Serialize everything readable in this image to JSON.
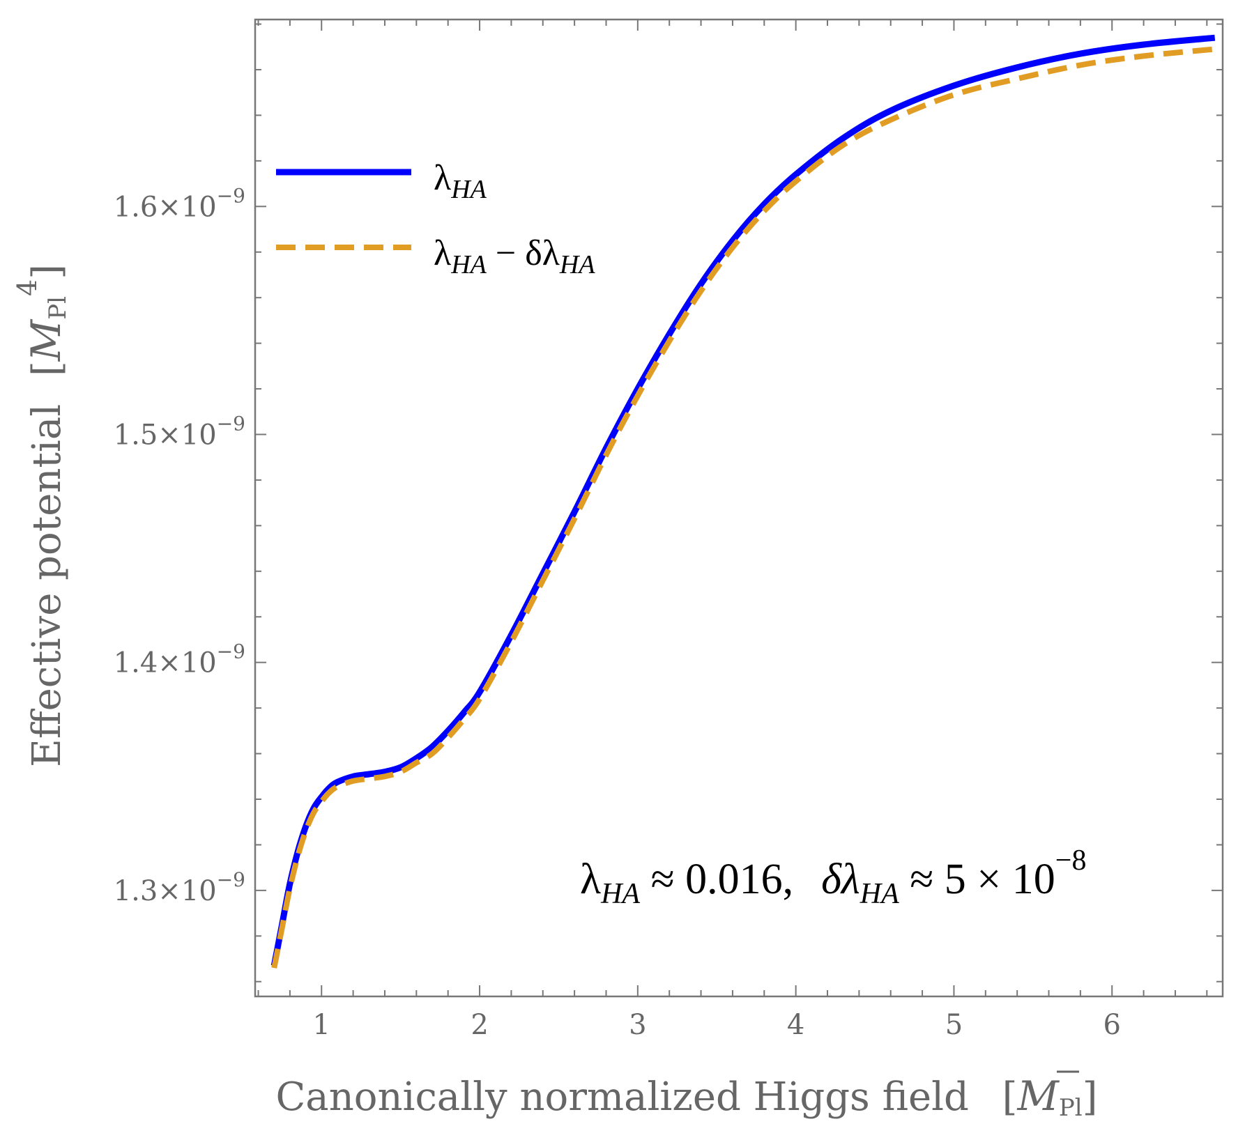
{
  "chart_data": {
    "type": "line",
    "xlabel": "Canonically normalized Higgs field",
    "xlabel_unit": "M̅Pl",
    "ylabel": "Effective potential",
    "ylabel_unit": "M̅Pl⁴",
    "xlim": [
      0.58,
      6.7
    ],
    "ylim": [
      1.2535e-09,
      1.682e-09
    ],
    "x_ticks": [
      {
        "value": 1,
        "label": "1"
      },
      {
        "value": 2,
        "label": "2"
      },
      {
        "value": 3,
        "label": "3"
      },
      {
        "value": 4,
        "label": "4"
      },
      {
        "value": 5,
        "label": "5"
      },
      {
        "value": 6,
        "label": "6"
      }
    ],
    "y_ticks": [
      {
        "value": 1.3e-09,
        "mantissa": "1.3",
        "base": "10",
        "exponent": "−9"
      },
      {
        "value": 1.4e-09,
        "mantissa": "1.4",
        "base": "10",
        "exponent": "−9"
      },
      {
        "value": 1.5e-09,
        "mantissa": "1.5",
        "base": "10",
        "exponent": "−9"
      },
      {
        "value": 1.6e-09,
        "mantissa": "1.6",
        "base": "10",
        "exponent": "−9"
      }
    ],
    "times_symbol": "×",
    "series": [
      {
        "name": "λHA",
        "legend": {
          "main": "λ",
          "sub": "HA",
          "rest": "",
          "sub2": ""
        },
        "color": "#0000ff",
        "style": "solid",
        "x": [
          0.7,
          0.75,
          0.8,
          0.85,
          0.9,
          0.95,
          1.0,
          1.05,
          1.1,
          1.2,
          1.3,
          1.4,
          1.5,
          1.6,
          1.7,
          1.8,
          1.9,
          2.0,
          2.2,
          2.4,
          2.6,
          2.8,
          3.0,
          3.2,
          3.4,
          3.6,
          3.8,
          4.0,
          4.3,
          4.6,
          5.0,
          5.4,
          5.8,
          6.2,
          6.65
        ],
        "y": [
          1.267e-09,
          1.285e-09,
          1.303e-09,
          1.317e-09,
          1.328e-09,
          1.336e-09,
          1.341e-09,
          1.345e-09,
          1.3475e-09,
          1.35e-09,
          1.351e-09,
          1.352e-09,
          1.354e-09,
          1.358e-09,
          1.363e-09,
          1.37e-09,
          1.378e-09,
          1.387e-09,
          1.412e-09,
          1.439e-09,
          1.466e-09,
          1.494e-09,
          1.52e-09,
          1.544e-09,
          1.566e-09,
          1.585e-09,
          1.601e-09,
          1.614e-09,
          1.63e-09,
          1.642e-09,
          1.653e-09,
          1.661e-09,
          1.667e-09,
          1.671e-09,
          1.674e-09
        ]
      },
      {
        "name": "λHA − δλHA",
        "legend": {
          "main": "λ",
          "sub": "HA",
          "rest": " − δλ",
          "sub2": "HA"
        },
        "color": "#e19c24",
        "style": "dashed",
        "x": [
          0.7,
          0.75,
          0.8,
          0.85,
          0.9,
          0.95,
          1.0,
          1.05,
          1.1,
          1.2,
          1.3,
          1.4,
          1.5,
          1.6,
          1.7,
          1.8,
          1.9,
          2.0,
          2.2,
          2.4,
          2.6,
          2.8,
          3.0,
          3.2,
          3.4,
          3.6,
          3.8,
          4.0,
          4.3,
          4.6,
          5.0,
          5.4,
          5.8,
          6.2,
          6.65
        ],
        "y": [
          1.266e-09,
          1.2835e-09,
          1.301e-09,
          1.315e-09,
          1.326e-09,
          1.334e-09,
          1.339e-09,
          1.343e-09,
          1.3455e-09,
          1.348e-09,
          1.349e-09,
          1.35e-09,
          1.352e-09,
          1.356e-09,
          1.36e-09,
          1.367e-09,
          1.375e-09,
          1.384e-09,
          1.409e-09,
          1.436e-09,
          1.463e-09,
          1.491e-09,
          1.517e-09,
          1.541e-09,
          1.563e-09,
          1.582e-09,
          1.598e-09,
          1.611e-09,
          1.627e-09,
          1.638e-09,
          1.649e-09,
          1.656e-09,
          1.662e-09,
          1.666e-09,
          1.669e-09
        ]
      }
    ],
    "annotation": {
      "lambda": "λ",
      "lambda_sub": "HA",
      "approx1": " ≈ 0.016,",
      "delta_lambda": "δλ",
      "delta_sub": "HA",
      "approx2": " ≈ 5 × 10",
      "exponent": "−8"
    },
    "legend_position": "top-left",
    "annotation_position": "bottom-right",
    "grid": false
  }
}
